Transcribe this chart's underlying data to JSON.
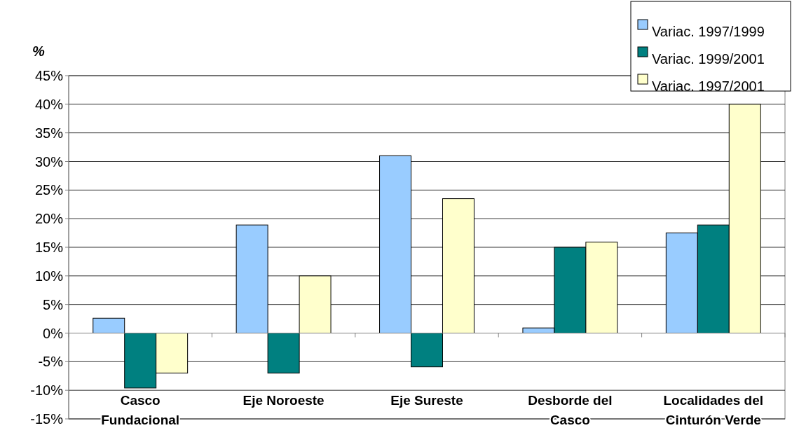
{
  "chart_data": {
    "type": "bar",
    "ylabel": "%",
    "categories": [
      "Casco\nFundacional",
      "Eje Noroeste",
      "Eje Sureste",
      "Desborde del\nCasco",
      "Localidades del\nCinturón Verde"
    ],
    "series": [
      {
        "name": "Variac. 1997/1999",
        "color": "#99ccff",
        "values": [
          2.6,
          18.9,
          31,
          0.9,
          17.5
        ]
      },
      {
        "name": "Variac. 1999/2001",
        "color": "#008080",
        "values": [
          -9.6,
          -7,
          -5.9,
          15,
          18.9
        ]
      },
      {
        "name": "Variac. 1997/2001",
        "color": "#ffffcc",
        "values": [
          -7,
          10,
          23.5,
          15.9,
          40
        ]
      }
    ],
    "ylim": [
      -15,
      45
    ],
    "yticks": [
      {
        "value": -15,
        "label": "-15%"
      },
      {
        "value": -10,
        "label": "-10%"
      },
      {
        "value": -5,
        "label": "-5%"
      },
      {
        "value": 0,
        "label": "0%"
      },
      {
        "value": 5,
        "label": "5%"
      },
      {
        "value": 10,
        "label": "10%"
      },
      {
        "value": 15,
        "label": "15%"
      },
      {
        "value": 20,
        "label": "20%"
      },
      {
        "value": 25,
        "label": "25%"
      },
      {
        "value": 30,
        "label": "30%"
      },
      {
        "value": 35,
        "label": "35%"
      },
      {
        "value": 40,
        "label": "40%"
      },
      {
        "value": 45,
        "label": "45%"
      }
    ],
    "grid": "y",
    "legend": "top right"
  }
}
